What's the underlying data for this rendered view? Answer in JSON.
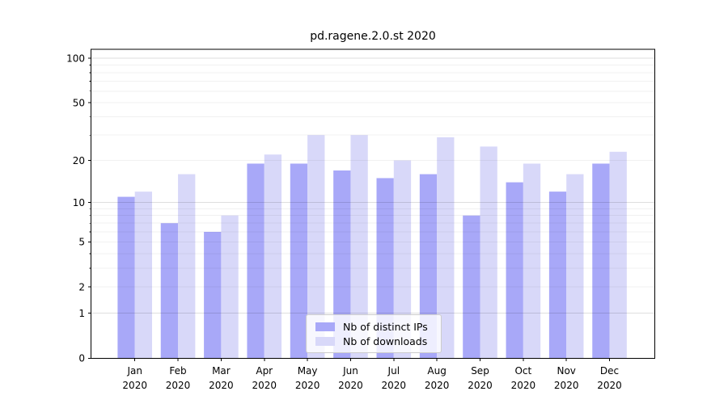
{
  "title": "pd.ragene.2.0.st 2020",
  "chart_data": {
    "type": "bar",
    "title": "pd.ragene.2.0.st 2020",
    "categories": [
      "Jan",
      "Feb",
      "Mar",
      "Apr",
      "May",
      "Jun",
      "Jul",
      "Aug",
      "Sep",
      "Oct",
      "Nov",
      "Dec"
    ],
    "category_year": "2020",
    "series": [
      {
        "name": "Nb of distinct IPs",
        "color": "#a8a8f8",
        "values": [
          11,
          7,
          6,
          19,
          19,
          17,
          15,
          16,
          8,
          14,
          12,
          19
        ]
      },
      {
        "name": "Nb of downloads",
        "color": "#d8d8f9",
        "values": [
          12,
          16,
          8,
          22,
          30,
          30,
          20,
          29,
          25,
          19,
          16,
          23
        ]
      }
    ],
    "yscale": "log1p",
    "ylim": [
      0,
      115
    ],
    "yticks": [
      0,
      1,
      2,
      5,
      10,
      20,
      50,
      100
    ],
    "major_gridlines": [
      1,
      10,
      100
    ],
    "minor_gridlines": [
      2,
      3,
      4,
      5,
      6,
      7,
      8,
      9,
      20,
      30,
      40,
      50,
      60,
      70,
      80,
      90
    ],
    "grid": "horizontal",
    "xlabel": "",
    "ylabel": "",
    "legend_position": "lower center"
  },
  "legend": {
    "items": [
      {
        "label": "Nb of distinct IPs",
        "color": "#a8a8f8"
      },
      {
        "label": "Nb of downloads",
        "color": "#d8d8f9"
      }
    ]
  },
  "colors": {
    "distinct_ips": "#a8a8f8",
    "downloads": "#d8d8f9",
    "axis": "#000000"
  }
}
